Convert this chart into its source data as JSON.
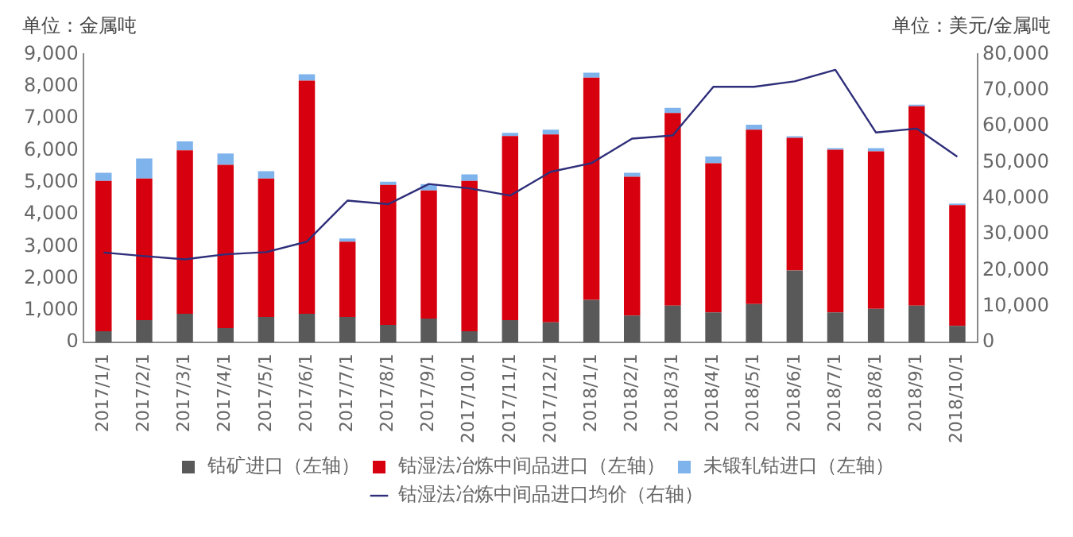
{
  "chart_data": {
    "type": "bar",
    "ylabel": "单位：金属吨",
    "y2label": "单位：美元/金属吨",
    "categories": [
      "2017/1/1",
      "2017/2/1",
      "2017/3/1",
      "2017/4/1",
      "2017/5/1",
      "2017/6/1",
      "2017/7/1",
      "2017/8/1",
      "2017/9/1",
      "2017/10/1",
      "2017/11/1",
      "2017/12/1",
      "2018/1/1",
      "2018/2/1",
      "2018/3/1",
      "2018/4/1",
      "2018/5/1",
      "2018/6/1",
      "2018/7/1",
      "2018/8/1",
      "2018/9/1",
      "2018/10/1"
    ],
    "stacked": true,
    "legend": "bottom",
    "series": [
      {
        "name": "钴矿进口（左轴）",
        "color": "#595959",
        "values": [
          350,
          700,
          900,
          450,
          800,
          900,
          800,
          550,
          750,
          350,
          700,
          630,
          1330,
          840,
          1150,
          940,
          1200,
          2250,
          940,
          1050,
          1150,
          520
        ]
      },
      {
        "name": "钴湿法冶炼中间品进口（左轴）",
        "color": "#d7000f",
        "values": [
          4700,
          4420,
          5100,
          5100,
          4320,
          7280,
          2350,
          4370,
          4000,
          4700,
          5750,
          5870,
          6940,
          4340,
          6020,
          4660,
          5450,
          4140,
          5080,
          4920,
          6230,
          3770
        ]
      },
      {
        "name": "未锻轧钴进口（左轴）",
        "color": "#7eb3ec",
        "values": [
          250,
          630,
          280,
          350,
          230,
          200,
          100,
          100,
          200,
          200,
          100,
          150,
          160,
          120,
          160,
          210,
          150,
          50,
          50,
          100,
          50,
          50
        ]
      },
      {
        "name": "钴湿法冶炼中间品进口均价（右轴）",
        "type": "line",
        "axis": "y2",
        "color": "#2e2e7a",
        "values": [
          25000,
          24000,
          23100,
          24500,
          25100,
          28000,
          39400,
          38400,
          44000,
          42800,
          40800,
          47400,
          49800,
          56600,
          57500,
          71000,
          71000,
          72500,
          75700,
          58300,
          59400,
          51600
        ]
      }
    ],
    "ylim": [
      0,
      9000
    ],
    "yticks": [
      {
        "value": 0,
        "label": "0"
      },
      {
        "value": 1000,
        "label": "1,000"
      },
      {
        "value": 2000,
        "label": "2,000"
      },
      {
        "value": 3000,
        "label": "3,000"
      },
      {
        "value": 4000,
        "label": "4,000"
      },
      {
        "value": 5000,
        "label": "5,000"
      },
      {
        "value": 6000,
        "label": "6,000"
      },
      {
        "value": 7000,
        "label": "7,000"
      },
      {
        "value": 8000,
        "label": "8,000"
      },
      {
        "value": 9000,
        "label": "9,000"
      }
    ],
    "y2lim": [
      0,
      80000
    ],
    "y2ticks": [
      {
        "value": 0,
        "label": "0"
      },
      {
        "value": 10000,
        "label": "10,000"
      },
      {
        "value": 20000,
        "label": "20,000"
      },
      {
        "value": 30000,
        "label": "30,000"
      },
      {
        "value": 40000,
        "label": "40,000"
      },
      {
        "value": 50000,
        "label": "50,000"
      },
      {
        "value": 60000,
        "label": "60,000"
      },
      {
        "value": 70000,
        "label": "70,000"
      },
      {
        "value": 80000,
        "label": "80,000"
      }
    ]
  }
}
